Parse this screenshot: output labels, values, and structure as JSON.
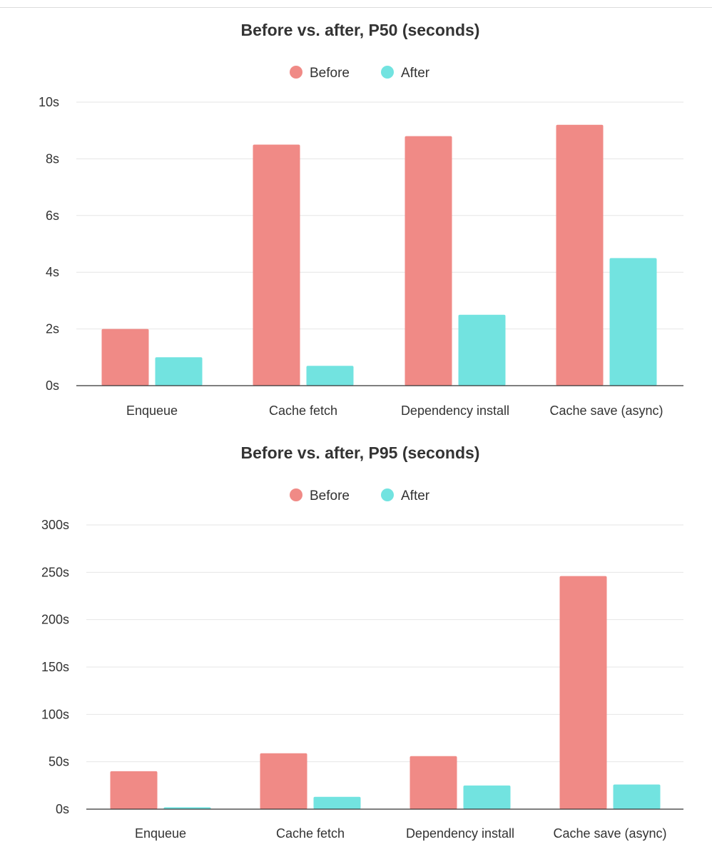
{
  "chart_data": [
    {
      "type": "bar",
      "title": "Before vs. after, P50 (seconds)",
      "categories": [
        "Enqueue",
        "Cache fetch",
        "Dependency install",
        "Cache save (async)"
      ],
      "series": [
        {
          "name": "Before",
          "color": "#f08a86",
          "values": [
            2.0,
            8.5,
            8.8,
            9.2
          ]
        },
        {
          "name": "After",
          "color": "#72e3e0",
          "values": [
            1.0,
            0.7,
            2.5,
            4.5
          ]
        }
      ],
      "yticks": [
        "0s",
        "2s",
        "4s",
        "6s",
        "8s",
        "10s"
      ],
      "ylim": [
        0,
        10
      ],
      "grid": true,
      "legend": "top-center"
    },
    {
      "type": "bar",
      "title": "Before vs. after, P95 (seconds)",
      "categories": [
        "Enqueue",
        "Cache fetch",
        "Dependency install",
        "Cache save (async)"
      ],
      "series": [
        {
          "name": "Before",
          "color": "#f08a86",
          "values": [
            40,
            59,
            56,
            246
          ]
        },
        {
          "name": "After",
          "color": "#72e3e0",
          "values": [
            2,
            13,
            25,
            26
          ]
        }
      ],
      "yticks": [
        "0s",
        "50s",
        "100s",
        "150s",
        "200s",
        "250s",
        "300s"
      ],
      "ylim": [
        0,
        300
      ],
      "grid": true,
      "legend": "top-center"
    }
  ]
}
